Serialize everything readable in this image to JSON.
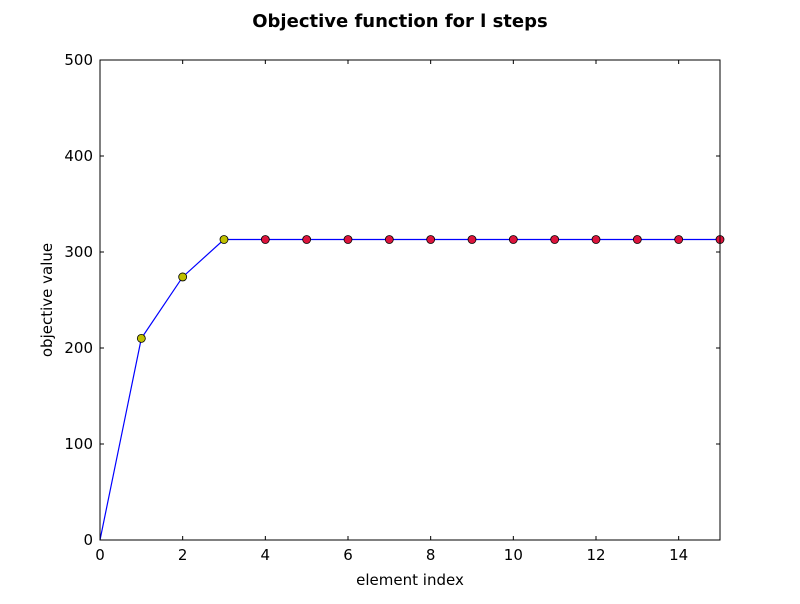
{
  "chart_data": {
    "type": "line",
    "title": "Objective function for l steps",
    "xlabel": "element index",
    "ylabel": "objective value",
    "xlim": [
      0,
      15
    ],
    "ylim": [
      0,
      500
    ],
    "x_ticks": [
      "0",
      "2",
      "4",
      "6",
      "8",
      "10",
      "12",
      "14"
    ],
    "y_ticks": [
      "0",
      "100",
      "200",
      "300",
      "400",
      "500"
    ],
    "grid": false,
    "legend": "none",
    "line_color": "#0000ff",
    "series": [
      {
        "x": [
          0,
          1,
          2,
          3,
          4,
          5,
          6,
          7,
          8,
          9,
          10,
          11,
          12,
          13,
          14,
          15
        ],
        "values": [
          0,
          210,
          274,
          313,
          313,
          313,
          313,
          313,
          313,
          313,
          313,
          313,
          313,
          313,
          313,
          313
        ],
        "marker_colors": [
          null,
          "#bfbf00",
          "#bfbf00",
          "#bfbf00",
          "#dc143c",
          "#dc143c",
          "#dc143c",
          "#dc143c",
          "#dc143c",
          "#dc143c",
          "#dc143c",
          "#dc143c",
          "#dc143c",
          "#dc143c",
          "#dc143c",
          "#dc143c"
        ]
      }
    ]
  }
}
